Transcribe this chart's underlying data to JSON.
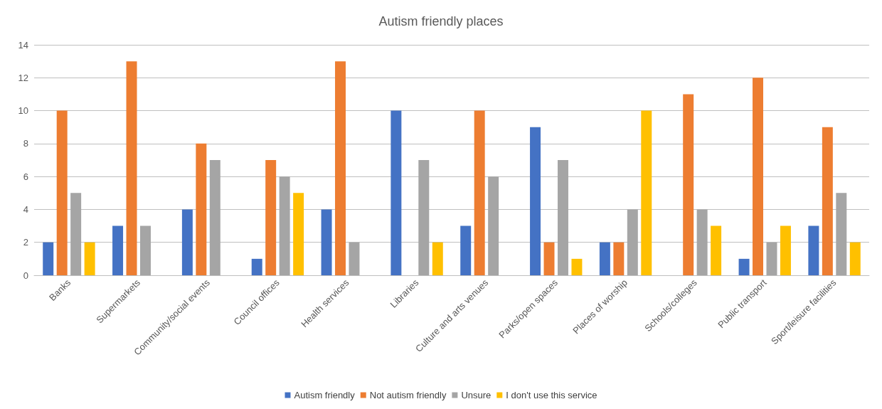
{
  "chart_data": {
    "type": "bar",
    "title": "Autism friendly places",
    "categories": [
      "Banks",
      "Supermarkets",
      "Community/social events",
      "Council offices",
      "Health services",
      "Libraries",
      "Culture and arts venues",
      "Parks/open spaces",
      "Places of worship",
      "Schools/colleges",
      "Public transport",
      "Sport/leisure facilities"
    ],
    "series": [
      {
        "name": "Autism friendly",
        "color": "#4472c4",
        "values": [
          2,
          3,
          4,
          1,
          4,
          10,
          3,
          9,
          2,
          0,
          1,
          3
        ]
      },
      {
        "name": "Not autism friendly",
        "color": "#ed7d31",
        "values": [
          10,
          13,
          8,
          7,
          13,
          0,
          10,
          2,
          2,
          11,
          12,
          9
        ]
      },
      {
        "name": "Unsure",
        "color": "#a5a5a5",
        "values": [
          5,
          3,
          7,
          6,
          2,
          7,
          6,
          7,
          4,
          4,
          2,
          5
        ]
      },
      {
        "name": "I don't use this service",
        "color": "#ffc000",
        "values": [
          2,
          0,
          0,
          5,
          0,
          2,
          0,
          1,
          10,
          3,
          3,
          2
        ]
      }
    ],
    "ylim": [
      0,
      14
    ],
    "yticks": [
      0,
      2,
      4,
      6,
      8,
      10,
      12,
      14
    ],
    "grid": "y",
    "legend": "bottom"
  }
}
